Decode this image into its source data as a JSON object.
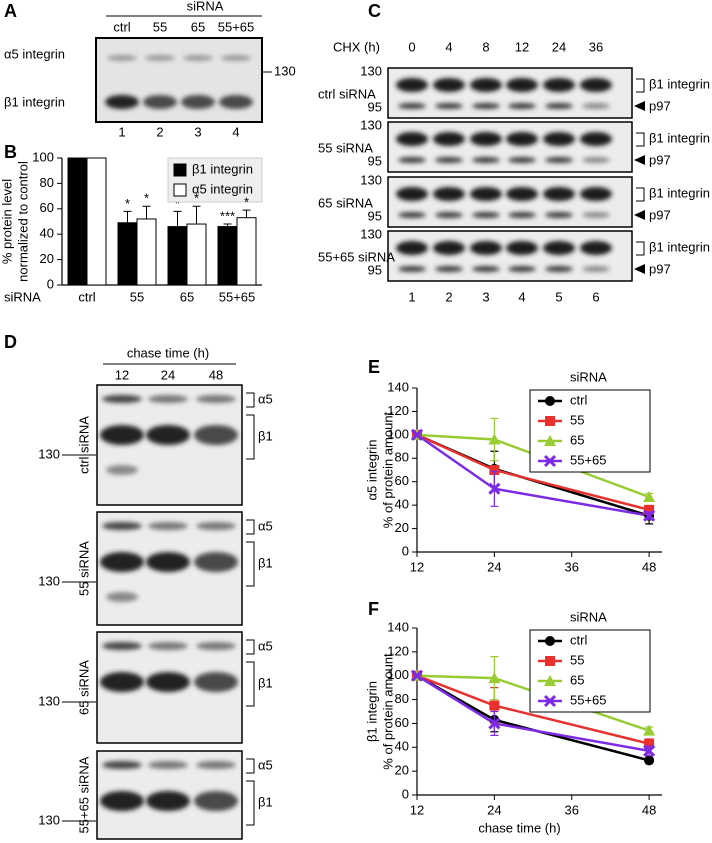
{
  "panel_labels": [
    "A",
    "B",
    "C",
    "D",
    "E",
    "F"
  ],
  "blot_a": {
    "header": "siRNA",
    "lanes": [
      "ctrl",
      "55",
      "65",
      "55+65"
    ],
    "rows": [
      "α5 integrin",
      "β1 integrin"
    ],
    "marker": "130",
    "lane_numbers": [
      "1",
      "2",
      "3",
      "4"
    ]
  },
  "blot_c": {
    "header": "CHX (h)",
    "times": [
      "0",
      "4",
      "8",
      "12",
      "24",
      "36"
    ],
    "rows": [
      "ctrl siRNA",
      "55 siRNA",
      "65 siRNA",
      "55+65 siRNA"
    ],
    "markers": [
      "130",
      "95"
    ],
    "bands": [
      "β1 integrin",
      "p97"
    ],
    "lane_numbers": [
      "1",
      "2",
      "3",
      "4",
      "5",
      "6"
    ]
  },
  "blot_d": {
    "header": "chase time (h)",
    "times": [
      "12",
      "24",
      "48"
    ],
    "rows": [
      "ctrl siRNA",
      "55 siRNA",
      "65 siRNA",
      "55+65 siRNA"
    ],
    "marker": "130",
    "bands": [
      "α5",
      "β1"
    ]
  },
  "chart_data": [
    {
      "type": "bar",
      "ylabel": [
        "% protein level",
        "normalized to control"
      ],
      "xlabel": "siRNA",
      "categories": [
        "ctrl",
        "55",
        "65",
        "55+65"
      ],
      "series": [
        {
          "name": "β1 integrin",
          "color": "#000000",
          "values": [
            100,
            49,
            46,
            46
          ],
          "errors": [
            0,
            9,
            12,
            2
          ],
          "significance": [
            null,
            "*",
            "*",
            "***"
          ]
        },
        {
          "name": "α5 integrin",
          "color": "#ffffff",
          "values": [
            100,
            52,
            48,
            53
          ],
          "errors": [
            0,
            10,
            14,
            6
          ],
          "significance": [
            null,
            "*",
            "*",
            "*"
          ]
        }
      ],
      "ylim": [
        0,
        100
      ],
      "yticks": [
        0,
        20,
        40,
        60,
        80,
        100
      ],
      "legend": "upper right"
    },
    {
      "type": "line",
      "ylabel": [
        "α5 integrin",
        "% of protein amount"
      ],
      "legend_title": "siRNA",
      "x": [
        12,
        24,
        48
      ],
      "series": [
        {
          "name": "ctrl",
          "color": "#000000",
          "marker": "circle",
          "values": [
            100,
            71,
            31
          ],
          "errors": [
            0,
            15,
            7
          ]
        },
        {
          "name": "55",
          "color": "#e8312f",
          "marker": "square",
          "values": [
            100,
            70,
            36
          ],
          "errors": [
            0,
            0,
            3
          ]
        },
        {
          "name": "65",
          "color": "#99cc33",
          "marker": "triangle",
          "values": [
            100,
            96,
            47
          ],
          "errors": [
            0,
            18,
            3
          ]
        },
        {
          "name": "55+65",
          "color": "#7b2ae6",
          "marker": "x",
          "values": [
            100,
            54,
            31
          ],
          "errors": [
            0,
            15,
            3
          ]
        }
      ],
      "xlim": [
        12,
        50
      ],
      "xticks": [
        12,
        24,
        36,
        48
      ],
      "ylim": [
        0,
        140
      ],
      "yticks": [
        0,
        20,
        40,
        60,
        80,
        100,
        120,
        140
      ]
    },
    {
      "type": "line",
      "ylabel": [
        "β1 integrin",
        "% of protein amount"
      ],
      "xlabel": "chase time (h)",
      "legend_title": "siRNA",
      "x": [
        12,
        24,
        48
      ],
      "series": [
        {
          "name": "ctrl",
          "color": "#000000",
          "marker": "circle",
          "values": [
            100,
            63,
            29
          ],
          "errors": [
            0,
            10,
            2
          ]
        },
        {
          "name": "55",
          "color": "#e8312f",
          "marker": "square",
          "values": [
            100,
            75,
            43
          ],
          "errors": [
            0,
            15,
            4
          ]
        },
        {
          "name": "65",
          "color": "#99cc33",
          "marker": "triangle",
          "values": [
            100,
            98,
            54
          ],
          "errors": [
            0,
            18,
            3
          ]
        },
        {
          "name": "55+65",
          "color": "#7b2ae6",
          "marker": "x",
          "values": [
            100,
            60,
            37
          ],
          "errors": [
            0,
            10,
            4
          ]
        }
      ],
      "xlim": [
        12,
        50
      ],
      "xticks": [
        12,
        24,
        36,
        48
      ],
      "ylim": [
        0,
        140
      ],
      "yticks": [
        0,
        20,
        40,
        60,
        80,
        100,
        120,
        140
      ]
    }
  ]
}
